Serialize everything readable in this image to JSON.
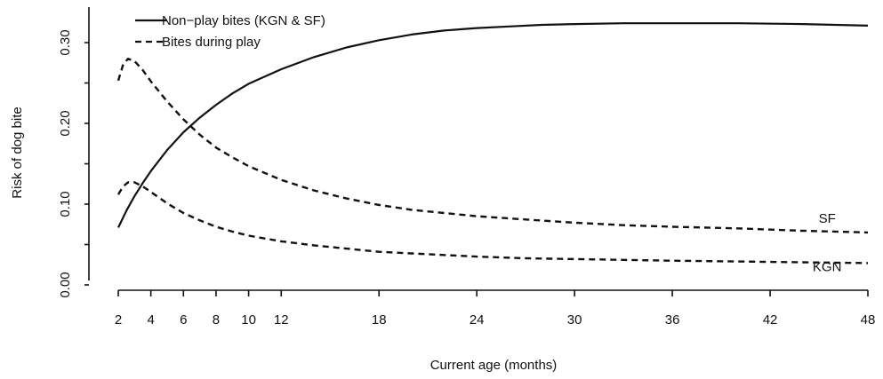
{
  "chart_data": {
    "type": "line",
    "title": "",
    "xlabel": "Current age (months)",
    "ylabel": "Risk of  dog bite",
    "xlim": [
      2,
      48
    ],
    "ylim": [
      0.0,
      0.33
    ],
    "x_ticks": [
      2,
      4,
      6,
      8,
      10,
      12,
      18,
      24,
      30,
      36,
      42,
      48
    ],
    "y_ticks": [
      0.0,
      0.1,
      0.2,
      0.3
    ],
    "y_tick_labels": [
      "0.00",
      "0.10",
      "0.20",
      "0.30"
    ],
    "legend": {
      "position": "top-left",
      "entries": [
        {
          "label": "Non−play bites (KGN & SF)",
          "style": "solid"
        },
        {
          "label": "Bites during play",
          "style": "dashed"
        }
      ]
    },
    "annotations": [
      {
        "text": "SF",
        "x": 45.5,
        "y": 0.077
      },
      {
        "text": "KGN",
        "x": 45.5,
        "y": 0.017
      }
    ],
    "series": [
      {
        "style": "solid",
        "x": [
          2,
          2.5,
          3,
          3.5,
          4,
          5,
          6,
          7,
          8,
          9,
          10,
          12,
          14,
          16,
          18,
          20,
          22,
          24,
          26,
          28,
          30,
          33,
          36,
          40,
          44,
          48
        ],
        "y": [
          0.071,
          0.092,
          0.11,
          0.126,
          0.141,
          0.167,
          0.189,
          0.207,
          0.223,
          0.237,
          0.249,
          0.267,
          0.282,
          0.294,
          0.303,
          0.31,
          0.315,
          0.318,
          0.32,
          0.322,
          0.323,
          0.324,
          0.324,
          0.324,
          0.323,
          0.321
        ]
      },
      {
        "style": "dashed",
        "x": [
          2,
          2.3,
          2.6,
          3,
          3.5,
          4,
          5,
          6,
          7,
          8,
          9,
          10,
          12,
          14,
          16,
          18,
          20,
          22,
          24,
          27,
          30,
          33,
          36,
          40,
          44,
          48
        ],
        "y": [
          0.253,
          0.273,
          0.28,
          0.277,
          0.266,
          0.252,
          0.227,
          0.205,
          0.186,
          0.17,
          0.158,
          0.147,
          0.13,
          0.117,
          0.107,
          0.099,
          0.093,
          0.089,
          0.085,
          0.081,
          0.077,
          0.074,
          0.072,
          0.07,
          0.067,
          0.065
        ]
      },
      {
        "style": "dashed",
        "x": [
          2,
          2.3,
          2.6,
          3,
          3.5,
          4,
          5,
          6,
          7,
          8,
          9,
          10,
          12,
          14,
          16,
          18,
          20,
          22,
          24,
          27,
          30,
          33,
          36,
          40,
          44,
          48
        ],
        "y": [
          0.112,
          0.122,
          0.127,
          0.127,
          0.122,
          0.115,
          0.101,
          0.089,
          0.08,
          0.072,
          0.066,
          0.061,
          0.054,
          0.049,
          0.045,
          0.041,
          0.039,
          0.037,
          0.035,
          0.033,
          0.032,
          0.031,
          0.03,
          0.029,
          0.028,
          0.027
        ]
      }
    ]
  }
}
